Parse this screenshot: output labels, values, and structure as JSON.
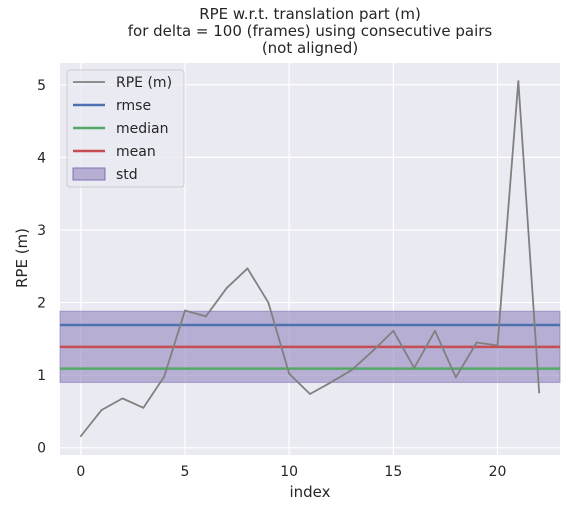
{
  "chart_data": {
    "type": "line",
    "title_lines": [
      "RPE w.r.t. translation part (m)",
      "for delta = 100 (frames) using consecutive pairs",
      "(not aligned)"
    ],
    "xlabel": "index",
    "ylabel": "RPE (m)",
    "xlim": [
      -1,
      23
    ],
    "ylim": [
      -0.1,
      5.3
    ],
    "xticks": [
      0,
      5,
      10,
      15,
      20
    ],
    "yticks": [
      0,
      1,
      2,
      3,
      4,
      5
    ],
    "grid": true,
    "legend_position": "top-left",
    "series": [
      {
        "name": "RPE (m)",
        "color": "#808080",
        "x": [
          0,
          1,
          2,
          3,
          4,
          5,
          6,
          7,
          8,
          9,
          10,
          11,
          12,
          13,
          14,
          15,
          16,
          17,
          18,
          19,
          20,
          21,
          22
        ],
        "y": [
          0.16,
          0.52,
          0.68,
          0.55,
          0.98,
          1.89,
          1.81,
          2.2,
          2.47,
          2.0,
          1.02,
          0.74,
          0.9,
          1.07,
          1.33,
          1.61,
          1.1,
          1.61,
          0.97,
          1.45,
          1.41,
          5.05,
          0.76
        ]
      }
    ],
    "stats": {
      "rmse": {
        "name": "rmse",
        "value": 1.69,
        "color": "#4c72b0"
      },
      "median": {
        "name": "median",
        "value": 1.09,
        "color": "#55a868"
      },
      "mean": {
        "name": "mean",
        "value": 1.39,
        "color": "#c44e52"
      },
      "std": {
        "name": "std",
        "low": 0.9,
        "high": 1.88,
        "color": "#8172b3"
      }
    },
    "legend_entries": [
      "RPE (m)",
      "rmse",
      "median",
      "mean",
      "std"
    ],
    "colors": {
      "plot_background": "#eaeaf2",
      "grid": "#ffffff",
      "text": "#262626"
    }
  }
}
